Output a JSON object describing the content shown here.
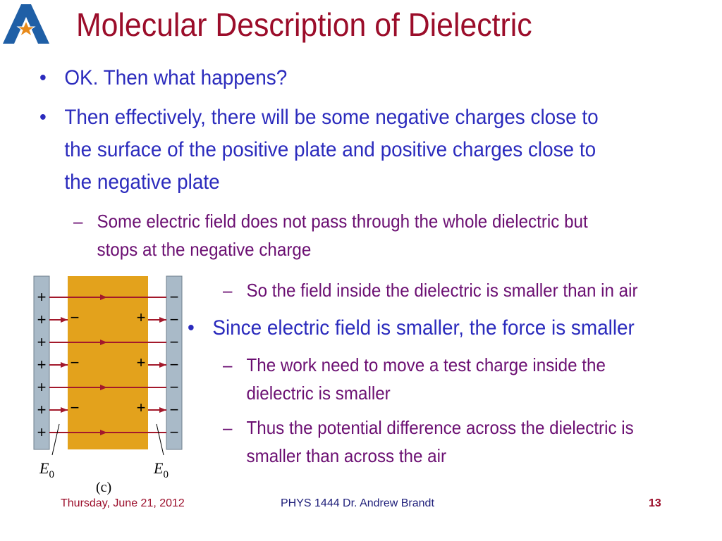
{
  "slide": {
    "title": "Molecular Description of Dielectric",
    "bullets_top": [
      {
        "marker": "•",
        "lines": [
          "OK. Then what happens?"
        ]
      },
      {
        "marker": "•",
        "lines": [
          "Then effectively, there will be some negative charges close to",
          "the surface of the positive plate and positive charges close to",
          "the negative plate"
        ]
      }
    ],
    "sub_top": {
      "marker": "–",
      "lines": [
        "Some electric field does not pass through the whole dielectric but",
        "stops at the negative charge"
      ]
    },
    "sub_air": {
      "marker": "–",
      "lines": [
        "So the field inside the dielectric is smaller than in air"
      ]
    },
    "bullet_force": {
      "marker": "•",
      "lines": [
        "Since electric field is smaller, the force is smaller"
      ]
    },
    "sub_work": {
      "marker": "–",
      "lines": [
        "The work need to move a test charge inside the",
        "dielectric is smaller"
      ]
    },
    "sub_potential": {
      "marker": "–",
      "lines": [
        "Thus the potential difference across the dielectric is",
        "smaller than across the air"
      ]
    }
  },
  "figure": {
    "plus": "+",
    "minus": "−",
    "field_label": "E",
    "field_subscript": "0",
    "caption": "(c)",
    "colors": {
      "plate": "#a9bac8",
      "dielectric": "#e3a21c",
      "field_line": "#a3192b"
    }
  },
  "footer": {
    "date": "Thursday, June 21, 2012",
    "course": "PHYS 1444  Dr. Andrew Brandt",
    "page": "13"
  },
  "colors": {
    "title": "#9b0d2a",
    "level1": "#2b2bbd",
    "level2": "#6b0f72",
    "logo_blue": "#1f5fa6",
    "logo_orange": "#e88a1a"
  }
}
